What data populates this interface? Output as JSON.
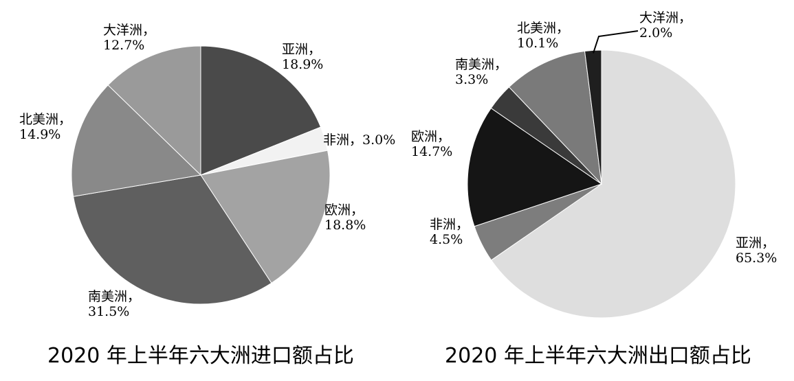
{
  "chart_data": [
    {
      "type": "pie",
      "title": "2020 年上半年六大洲进口额占比",
      "slices": [
        {
          "name": "亚洲",
          "value": 18.9,
          "label": "18.9%",
          "color": "#4a4a4a"
        },
        {
          "name": "非洲",
          "value": 3.0,
          "label": "3.0%",
          "color": "#f2f2f2"
        },
        {
          "name": "欧洲",
          "value": 18.8,
          "label": "18.8%",
          "color": "#a3a3a3"
        },
        {
          "name": "南美洲",
          "value": 31.5,
          "label": "31.5%",
          "color": "#5f5f5f"
        },
        {
          "name": "北美洲",
          "value": 14.9,
          "label": "14.9%",
          "color": "#898989"
        },
        {
          "name": "大洋洲",
          "value": 12.7,
          "label": "12.7%",
          "color": "#9a9a9a"
        }
      ]
    },
    {
      "type": "pie",
      "title": "2020 年上半年六大洲出口额占比",
      "slices": [
        {
          "name": "亚洲",
          "value": 65.3,
          "label": "65.3%",
          "color": "#dedede"
        },
        {
          "name": "非洲",
          "value": 4.5,
          "label": "4.5%",
          "color": "#7d7d7d"
        },
        {
          "name": "欧洲",
          "value": 14.7,
          "label": "14.7%",
          "color": "#151515"
        },
        {
          "name": "南美洲",
          "value": 3.3,
          "label": "3.3%",
          "color": "#3a3a3a"
        },
        {
          "name": "北美洲",
          "value": 10.1,
          "label": "10.1%",
          "color": "#7a7a7a"
        },
        {
          "name": "大洋洲",
          "value": 2.0,
          "label": "2.0%",
          "color": "#1f1f1f"
        }
      ]
    }
  ]
}
